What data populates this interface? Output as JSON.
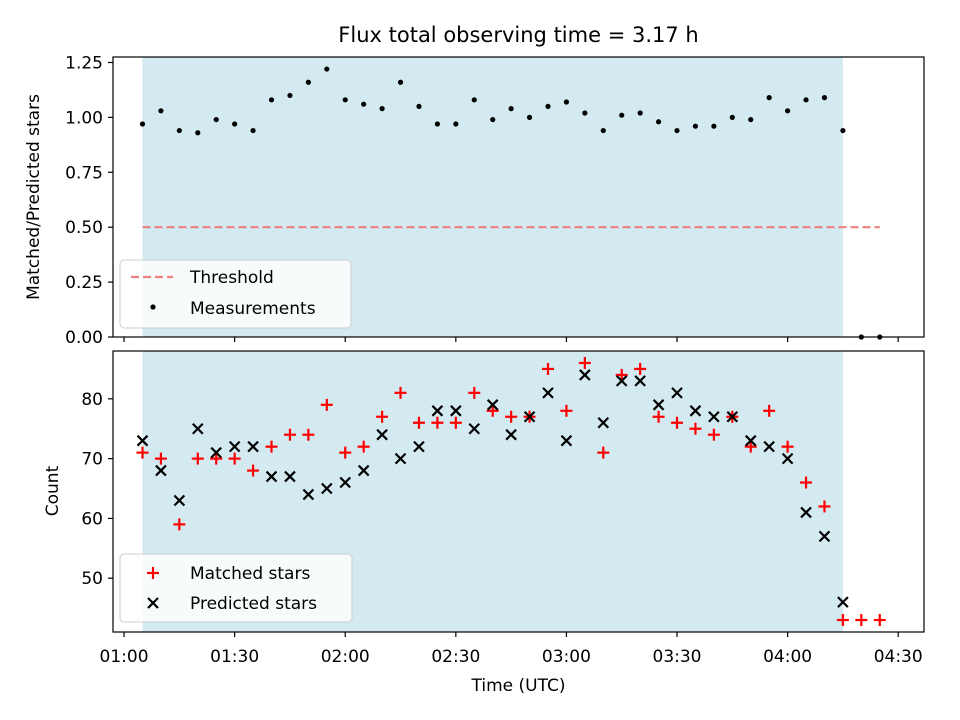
{
  "chart_data": [
    {
      "type": "scatter",
      "title": "Flux total observing time = 3.17 h",
      "ylabel": "Matched/Predicted stars",
      "xlabel": "",
      "xlim": [
        "00:57",
        "04:37"
      ],
      "ylim": [
        0,
        1.275
      ],
      "yticks": [
        0.0,
        0.25,
        0.5,
        0.75,
        1.0,
        1.25
      ],
      "ytick_labels": [
        "0.00",
        "0.25",
        "0.50",
        "0.75",
        "1.00",
        "1.25"
      ],
      "xticks": [
        "01:00",
        "01:30",
        "02:00",
        "02:30",
        "03:00",
        "03:30",
        "04:00",
        "04:30"
      ],
      "grid": false,
      "legend_position": "lower-left",
      "observing_window": [
        "01:05",
        "04:15"
      ],
      "observing_window_color": "#d4eaf1",
      "threshold": {
        "name": "Threshold",
        "y": 0.5,
        "x": [
          "01:05",
          "04:25"
        ],
        "color": "#f08080"
      },
      "measurements": {
        "name": "Measurements",
        "color": "#000000",
        "x": [
          "01:05",
          "01:10",
          "01:15",
          "01:20",
          "01:25",
          "01:30",
          "01:35",
          "01:40",
          "01:45",
          "01:50",
          "01:55",
          "02:00",
          "02:05",
          "02:10",
          "02:15",
          "02:20",
          "02:25",
          "02:30",
          "02:35",
          "02:40",
          "02:45",
          "02:50",
          "02:55",
          "03:00",
          "03:05",
          "03:10",
          "03:15",
          "03:20",
          "03:25",
          "03:30",
          "03:35",
          "03:40",
          "03:45",
          "03:50",
          "03:55",
          "04:00",
          "04:05",
          "04:10",
          "04:15",
          "04:20",
          "04:25"
        ],
        "y": [
          0.97,
          1.03,
          0.94,
          0.93,
          0.99,
          0.97,
          0.94,
          1.08,
          1.1,
          1.16,
          1.22,
          1.08,
          1.06,
          1.04,
          1.16,
          1.05,
          0.97,
          0.97,
          1.08,
          0.99,
          1.04,
          1.0,
          1.05,
          1.07,
          1.02,
          0.94,
          1.01,
          1.02,
          0.98,
          0.94,
          0.96,
          0.96,
          1.0,
          0.99,
          1.09,
          1.03,
          1.08,
          1.09,
          0.94,
          0.0,
          0.0
        ]
      }
    },
    {
      "type": "scatter",
      "title": "",
      "xlabel": "Time (UTC)",
      "ylabel": "Count",
      "xlim": [
        "00:57",
        "04:37"
      ],
      "ylim": [
        41,
        88
      ],
      "yticks": [
        50,
        60,
        70,
        80
      ],
      "ytick_labels": [
        "50",
        "60",
        "70",
        "80"
      ],
      "xticks": [
        "01:00",
        "01:30",
        "02:00",
        "02:30",
        "03:00",
        "03:30",
        "04:00",
        "04:30"
      ],
      "xtick_labels": [
        "01:00",
        "01:30",
        "02:00",
        "02:30",
        "03:00",
        "03:30",
        "04:00",
        "04:30"
      ],
      "grid": false,
      "legend_position": "lower-left",
      "observing_window": [
        "01:05",
        "04:15"
      ],
      "observing_window_color": "#d4eaf1",
      "series": [
        {
          "name": "Matched stars",
          "marker": "+",
          "color": "#ff0000",
          "x": [
            "01:05",
            "01:10",
            "01:15",
            "01:20",
            "01:25",
            "01:30",
            "01:35",
            "01:40",
            "01:45",
            "01:50",
            "01:55",
            "02:00",
            "02:05",
            "02:10",
            "02:15",
            "02:20",
            "02:25",
            "02:30",
            "02:35",
            "02:40",
            "02:45",
            "02:50",
            "02:55",
            "03:00",
            "03:05",
            "03:10",
            "03:15",
            "03:20",
            "03:25",
            "03:30",
            "03:35",
            "03:40",
            "03:45",
            "03:50",
            "03:55",
            "04:00",
            "04:05",
            "04:10",
            "04:15",
            "04:20",
            "04:25"
          ],
          "y": [
            71,
            70,
            59,
            70,
            70,
            70,
            68,
            72,
            74,
            74,
            79,
            71,
            72,
            77,
            81,
            76,
            76,
            76,
            81,
            78,
            77,
            77,
            85,
            78,
            86,
            71,
            84,
            85,
            77,
            76,
            75,
            74,
            77,
            72,
            78,
            72,
            66,
            62,
            43,
            43,
            43
          ]
        },
        {
          "name": "Predicted stars",
          "marker": "x",
          "color": "#000000",
          "x": [
            "01:05",
            "01:10",
            "01:15",
            "01:20",
            "01:25",
            "01:30",
            "01:35",
            "01:40",
            "01:45",
            "01:50",
            "01:55",
            "02:00",
            "02:05",
            "02:10",
            "02:15",
            "02:20",
            "02:25",
            "02:30",
            "02:35",
            "02:40",
            "02:45",
            "02:50",
            "02:55",
            "03:00",
            "03:05",
            "03:10",
            "03:15",
            "03:20",
            "03:25",
            "03:30",
            "03:35",
            "03:40",
            "03:45",
            "03:50",
            "03:55",
            "04:00",
            "04:05",
            "04:10",
            "04:15"
          ],
          "y": [
            73,
            68,
            63,
            75,
            71,
            72,
            72,
            67,
            67,
            64,
            65,
            66,
            68,
            74,
            70,
            72,
            78,
            78,
            75,
            79,
            74,
            77,
            81,
            73,
            84,
            76,
            83,
            83,
            79,
            81,
            78,
            77,
            77,
            73,
            72,
            70,
            61,
            57,
            46
          ]
        }
      ]
    }
  ]
}
